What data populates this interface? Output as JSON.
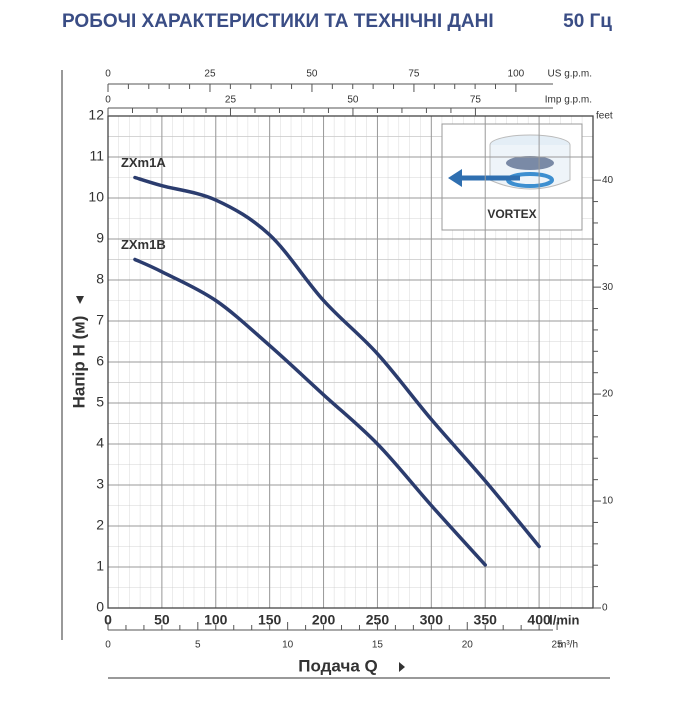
{
  "chart_data": {
    "type": "line",
    "title": "РОБОЧІ ХАРАКТЕРИСТИКИ ТА ТЕХНІЧНІ ДАНІ",
    "subtitle": "50 Гц",
    "xlabel": "Подача Q",
    "ylabel": "Напір H (м)",
    "x_unit": "l/min",
    "x": [
      25,
      50,
      100,
      150,
      200,
      250,
      300,
      350,
      400
    ],
    "series": [
      {
        "name": "ZXm1A",
        "color": "#2b3c6e",
        "values": [
          10.5,
          10.3,
          9.95,
          9.1,
          7.5,
          6.2,
          4.6,
          3.1,
          1.5
        ]
      },
      {
        "name": "ZXm1B",
        "color": "#2b3c6e",
        "values": [
          8.5,
          8.2,
          7.5,
          6.4,
          5.2,
          4.0,
          2.5,
          1.05,
          null
        ]
      }
    ],
    "xlim": [
      0,
      450
    ],
    "xticks": [
      0,
      50,
      100,
      150,
      200,
      250,
      300,
      350,
      400
    ],
    "ylim": [
      0,
      12
    ],
    "yticks": [
      0,
      1,
      2,
      3,
      4,
      5,
      6,
      7,
      8,
      9,
      10,
      11,
      12
    ],
    "y2lim": [
      0,
      46
    ],
    "y2ticks": [
      0,
      10,
      20,
      30,
      40
    ],
    "y2_label": "feet",
    "top_axis_us": {
      "label": "US g.p.m.",
      "lim": [
        0,
        118.9
      ],
      "ticks": [
        0,
        25,
        50,
        75,
        100
      ]
    },
    "top_axis_imp": {
      "label": "Imp g.p.m.",
      "lim": [
        0,
        99
      ],
      "ticks": [
        0,
        25,
        50,
        75
      ]
    },
    "bottom_axis_m3h": {
      "label": "m³/h",
      "lim": [
        0,
        27
      ],
      "ticks": [
        0,
        5,
        10,
        15,
        20,
        25
      ]
    },
    "inset_label": "VORTEX",
    "grid": true
  }
}
